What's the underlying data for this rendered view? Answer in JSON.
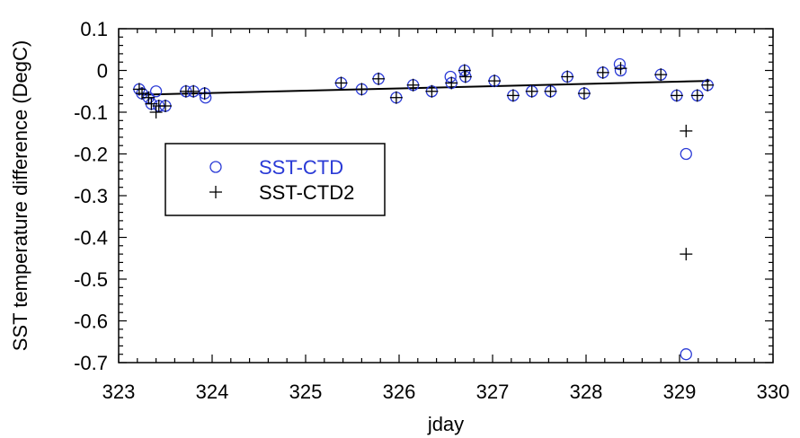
{
  "colors": {
    "ctd": "#2a3ad6",
    "ctd2": "#000000",
    "axis": "#000000",
    "fit": "#000000"
  },
  "chart_data": {
    "type": "scatter",
    "title": "",
    "xlabel": "jday",
    "ylabel": "SST temperature difference (DegC)",
    "xlim": [
      323,
      330
    ],
    "ylim": [
      -0.7,
      0.1
    ],
    "xticks": [
      "323",
      "324",
      "325",
      "326",
      "327",
      "328",
      "329",
      "330"
    ],
    "yticks": [
      "0.1",
      "0",
      "-0.1",
      "-0.2",
      "-0.3",
      "-0.4",
      "-0.5",
      "-0.6",
      "-0.7"
    ],
    "grid": false,
    "legend_position": "left",
    "series": [
      {
        "name": "SST-CTD",
        "marker": "circle",
        "points": [
          [
            323.22,
            -0.045
          ],
          [
            323.25,
            -0.055
          ],
          [
            323.32,
            -0.065
          ],
          [
            323.35,
            -0.08
          ],
          [
            323.4,
            -0.05
          ],
          [
            323.43,
            -0.085
          ],
          [
            323.5,
            -0.085
          ],
          [
            323.72,
            -0.05
          ],
          [
            323.8,
            -0.05
          ],
          [
            323.92,
            -0.055
          ],
          [
            323.93,
            -0.065
          ],
          [
            325.38,
            -0.03
          ],
          [
            325.6,
            -0.045
          ],
          [
            325.78,
            -0.02
          ],
          [
            325.97,
            -0.065
          ],
          [
            326.15,
            -0.035
          ],
          [
            326.35,
            -0.05
          ],
          [
            326.55,
            -0.015
          ],
          [
            326.56,
            -0.03
          ],
          [
            326.7,
            0.0
          ],
          [
            326.71,
            -0.015
          ],
          [
            327.02,
            -0.025
          ],
          [
            327.22,
            -0.06
          ],
          [
            327.42,
            -0.05
          ],
          [
            327.62,
            -0.05
          ],
          [
            327.8,
            -0.015
          ],
          [
            327.98,
            -0.055
          ],
          [
            328.18,
            -0.005
          ],
          [
            328.36,
            0.015
          ],
          [
            328.37,
            0.0
          ],
          [
            328.8,
            -0.01
          ],
          [
            328.97,
            -0.06
          ],
          [
            329.07,
            -0.2
          ],
          [
            329.07,
            -0.68
          ],
          [
            329.19,
            -0.06
          ],
          [
            329.3,
            -0.035
          ]
        ]
      },
      {
        "name": "SST-CTD2",
        "marker": "plus",
        "points": [
          [
            323.22,
            -0.045
          ],
          [
            323.25,
            -0.055
          ],
          [
            323.32,
            -0.065
          ],
          [
            323.35,
            -0.08
          ],
          [
            323.4,
            -0.1
          ],
          [
            323.43,
            -0.085
          ],
          [
            323.5,
            -0.085
          ],
          [
            323.72,
            -0.05
          ],
          [
            323.8,
            -0.05
          ],
          [
            323.92,
            -0.055
          ],
          [
            325.38,
            -0.03
          ],
          [
            325.6,
            -0.045
          ],
          [
            325.78,
            -0.02
          ],
          [
            325.97,
            -0.065
          ],
          [
            326.15,
            -0.035
          ],
          [
            326.35,
            -0.05
          ],
          [
            326.56,
            -0.03
          ],
          [
            326.7,
            0.0
          ],
          [
            326.71,
            -0.015
          ],
          [
            327.02,
            -0.025
          ],
          [
            327.22,
            -0.06
          ],
          [
            327.42,
            -0.05
          ],
          [
            327.62,
            -0.05
          ],
          [
            327.8,
            -0.015
          ],
          [
            327.98,
            -0.055
          ],
          [
            328.18,
            -0.005
          ],
          [
            328.37,
            0.005
          ],
          [
            328.8,
            -0.01
          ],
          [
            328.97,
            -0.06
          ],
          [
            329.07,
            -0.145
          ],
          [
            329.07,
            -0.44
          ],
          [
            329.19,
            -0.06
          ],
          [
            329.3,
            -0.035
          ]
        ]
      }
    ],
    "fit_line": {
      "x": [
        323.25,
        329.32
      ],
      "y": [
        -0.058,
        -0.025
      ]
    }
  }
}
